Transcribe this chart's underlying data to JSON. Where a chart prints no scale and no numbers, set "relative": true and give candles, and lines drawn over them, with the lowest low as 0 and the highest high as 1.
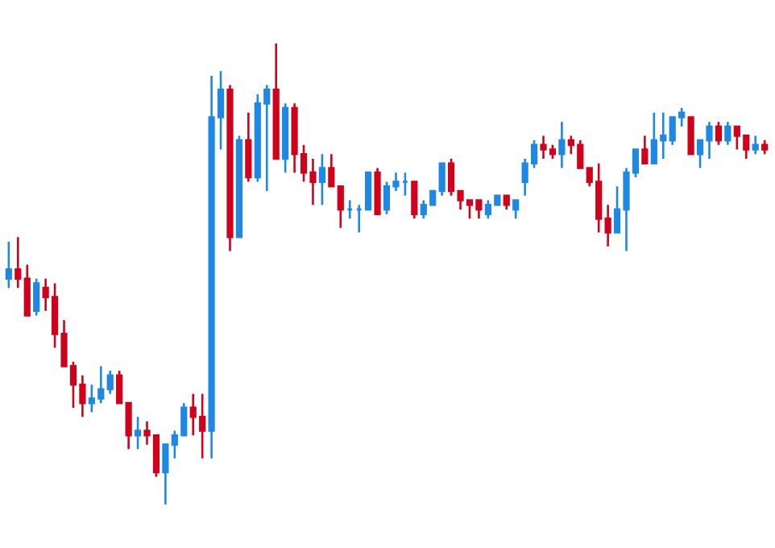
{
  "chart_data": {
    "type": "candlestick",
    "relative": true,
    "categories": [
      null,
      null,
      null,
      null,
      null,
      null,
      null,
      null,
      null,
      null,
      null,
      null,
      null,
      null,
      null,
      null,
      null,
      null,
      null,
      null,
      null,
      null,
      null,
      null,
      null,
      null,
      null,
      null,
      null,
      null,
      null,
      null,
      null,
      null,
      null,
      null,
      null,
      null,
      null,
      null,
      null,
      null,
      null,
      null,
      null,
      null,
      null,
      null,
      null,
      null,
      null,
      null,
      null,
      null,
      null,
      null,
      null,
      null,
      null,
      null,
      null,
      null,
      null,
      null,
      null,
      null,
      null,
      null,
      null,
      null,
      null,
      null,
      null,
      null,
      null,
      null,
      null,
      null,
      null,
      null,
      null,
      null,
      null
    ],
    "ohlc": [
      [
        0.49,
        0.57,
        0.47,
        0.51
      ],
      [
        0.51,
        0.58,
        0.47,
        0.49
      ],
      [
        0.49,
        0.52,
        0.41,
        0.41
      ],
      [
        0.42,
        0.49,
        0.41,
        0.48
      ],
      [
        0.47,
        0.49,
        0.42,
        0.45
      ],
      [
        0.45,
        0.48,
        0.34,
        0.37
      ],
      [
        0.37,
        0.4,
        0.3,
        0.3
      ],
      [
        0.3,
        0.31,
        0.21,
        0.26
      ],
      [
        0.26,
        0.28,
        0.19,
        0.22
      ],
      [
        0.22,
        0.26,
        0.2,
        0.23
      ],
      [
        0.23,
        0.3,
        0.22,
        0.25
      ],
      [
        0.25,
        0.29,
        0.24,
        0.28
      ],
      [
        0.28,
        0.29,
        0.22,
        0.22
      ],
      [
        0.22,
        0.22,
        0.12,
        0.15
      ],
      [
        0.15,
        0.19,
        0.12,
        0.16
      ],
      [
        0.16,
        0.18,
        0.13,
        0.15
      ],
      [
        0.15,
        0.15,
        0.06,
        0.07
      ],
      [
        0.07,
        0.13,
        0,
        0.13
      ],
      [
        0.13,
        0.16,
        0.1,
        0.15
      ],
      [
        0.15,
        0.22,
        0.15,
        0.21
      ],
      [
        0.21,
        0.24,
        0.15,
        0.19
      ],
      [
        0.19,
        0.24,
        0.1,
        0.16
      ],
      [
        0.16,
        0.93,
        0.1,
        0.84
      ],
      [
        0.84,
        0.94,
        0.77,
        0.9
      ],
      [
        0.9,
        0.91,
        0.55,
        0.58
      ],
      [
        0.58,
        0.8,
        0.58,
        0.79
      ],
      [
        0.79,
        0.85,
        0.7,
        0.71
      ],
      [
        0.71,
        0.89,
        0.7,
        0.87
      ],
      [
        0.87,
        0.91,
        0.68,
        0.9
      ],
      [
        0.9,
        1,
        0.75,
        0.75
      ],
      [
        0.75,
        0.87,
        0.72,
        0.86
      ],
      [
        0.86,
        0.87,
        0.72,
        0.76
      ],
      [
        0.76,
        0.78,
        0.7,
        0.72
      ],
      [
        0.72,
        0.75,
        0.65,
        0.7
      ],
      [
        0.7,
        0.76,
        0.65,
        0.73
      ],
      [
        0.73,
        0.76,
        0.69,
        0.69
      ],
      [
        0.69,
        0.69,
        0.6,
        0.64
      ],
      [
        0.64,
        0.66,
        0.62,
        0.64
      ],
      [
        0.64,
        0.65,
        0.59,
        0.64
      ],
      [
        0.64,
        0.72,
        0.64,
        0.72
      ],
      [
        0.72,
        0.73,
        0.63,
        0.63
      ],
      [
        0.64,
        0.7,
        0.63,
        0.69
      ],
      [
        0.69,
        0.72,
        0.68,
        0.7
      ],
      [
        0.7,
        0.72,
        0.67,
        0.7
      ],
      [
        0.7,
        0.7,
        0.62,
        0.63
      ],
      [
        0.63,
        0.66,
        0.62,
        0.65
      ],
      [
        0.65,
        0.68,
        0.65,
        0.68
      ],
      [
        0.68,
        0.74,
        0.67,
        0.74
      ],
      [
        0.74,
        0.75,
        0.67,
        0.68
      ],
      [
        0.68,
        0.68,
        0.64,
        0.66
      ],
      [
        0.66,
        0.66,
        0.62,
        0.65
      ],
      [
        0.66,
        0.66,
        0.62,
        0.64
      ],
      [
        0.63,
        0.66,
        0.62,
        0.65
      ],
      [
        0.65,
        0.67,
        0.65,
        0.67
      ],
      [
        0.67,
        0.67,
        0.64,
        0.65
      ],
      [
        0.64,
        0.66,
        0.62,
        0.66
      ],
      [
        0.7,
        0.75,
        0.67,
        0.74
      ],
      [
        0.74,
        0.79,
        0.73,
        0.78
      ],
      [
        0.78,
        0.8,
        0.75,
        0.77
      ],
      [
        0.77,
        0.78,
        0.75,
        0.76
      ],
      [
        0.76,
        0.83,
        0.73,
        0.79
      ],
      [
        0.79,
        0.8,
        0.76,
        0.78
      ],
      [
        0.78,
        0.79,
        0.73,
        0.73
      ],
      [
        0.73,
        0.73,
        0.69,
        0.7
      ],
      [
        0.7,
        0.74,
        0.59,
        0.62
      ],
      [
        0.62,
        0.65,
        0.56,
        0.59
      ],
      [
        0.59,
        0.69,
        0.59,
        0.64
      ],
      [
        0.64,
        0.73,
        0.55,
        0.72
      ],
      [
        0.72,
        0.77,
        0.71,
        0.77
      ],
      [
        0.77,
        0.8,
        0.74,
        0.74
      ],
      [
        0.74,
        0.85,
        0.74,
        0.79
      ],
      [
        0.79,
        0.85,
        0.75,
        0.8
      ],
      [
        0.79,
        0.84,
        0.78,
        0.84
      ],
      [
        0.84,
        0.86,
        0.82,
        0.85
      ],
      [
        0.84,
        0.84,
        0.76,
        0.76
      ],
      [
        0.76,
        0.79,
        0.73,
        0.79
      ],
      [
        0.79,
        0.83,
        0.75,
        0.82
      ],
      [
        0.82,
        0.83,
        0.78,
        0.79
      ],
      [
        0.79,
        0.83,
        0.78,
        0.82
      ],
      [
        0.82,
        0.82,
        0.77,
        0.8
      ],
      [
        0.8,
        0.8,
        0.75,
        0.77
      ],
      [
        0.77,
        0.8,
        0.76,
        0.78
      ],
      [
        0.78,
        0.79,
        0.76,
        0.77
      ]
    ],
    "colors": [
      "#1e88e5",
      "#d0021b",
      "#d0021b",
      "#1e88e5",
      "#d0021b",
      "#d0021b",
      "#d0021b",
      "#d0021b",
      "#d0021b",
      "#1e88e5",
      "#1e88e5",
      "#1e88e5",
      "#d0021b",
      "#d0021b",
      "#1e88e5",
      "#d0021b",
      "#d0021b",
      "#1e88e5",
      "#1e88e5",
      "#1e88e5",
      "#d0021b",
      "#d0021b",
      "#1e88e5",
      "#1e88e5",
      "#d0021b",
      "#1e88e5",
      "#d0021b",
      "#1e88e5",
      "#1e88e5",
      "#d0021b",
      "#1e88e5",
      "#d0021b",
      "#d0021b",
      "#d0021b",
      "#1e88e5",
      "#d0021b",
      "#d0021b",
      "#1e88e5",
      "#1e88e5",
      "#1e88e5",
      "#d0021b",
      "#1e88e5",
      "#1e88e5",
      "#1e88e5",
      "#d0021b",
      "#1e88e5",
      "#1e88e5",
      "#1e88e5",
      "#d0021b",
      "#d0021b",
      "#d0021b",
      "#d0021b",
      "#1e88e5",
      "#1e88e5",
      "#d0021b",
      "#1e88e5",
      "#1e88e5",
      "#1e88e5",
      "#d0021b",
      "#d0021b",
      "#1e88e5",
      "#d0021b",
      "#d0021b",
      "#d0021b",
      "#d0021b",
      "#d0021b",
      "#1e88e5",
      "#1e88e5",
      "#1e88e5",
      "#d0021b",
      "#1e88e5",
      "#1e88e5",
      "#1e88e5",
      "#1e88e5",
      "#d0021b",
      "#1e88e5",
      "#1e88e5",
      "#d0021b",
      "#1e88e5",
      "#d0021b",
      "#d0021b",
      "#1e88e5",
      "#d0021b"
    ]
  }
}
